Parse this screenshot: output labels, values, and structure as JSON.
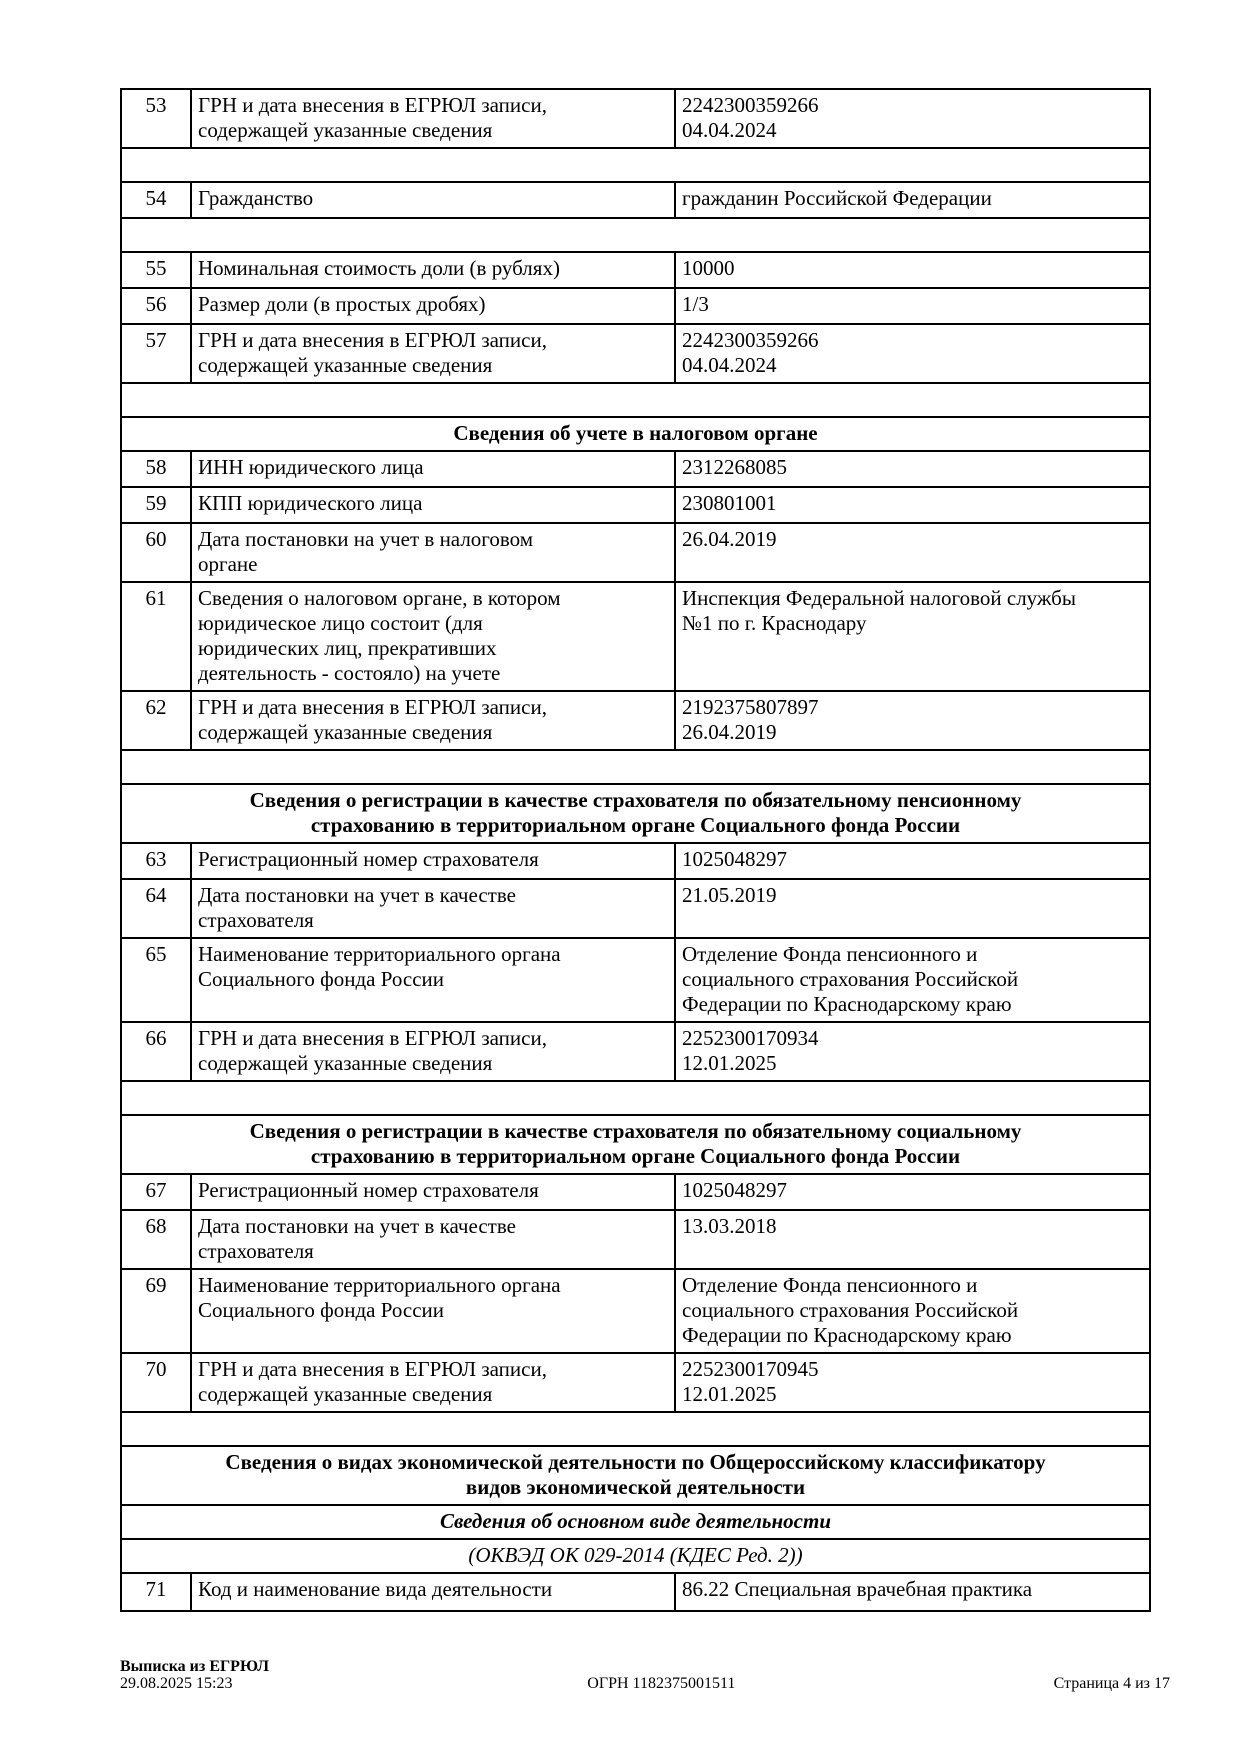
{
  "table": {
    "rows": [
      {
        "type": "data",
        "num": "53",
        "label_lines": [
          "ГРН и дата внесения в ЕГРЮЛ записи,",
          "содержащей указанные сведения"
        ],
        "value_lines": [
          "2242300359266",
          "04.04.2024"
        ]
      },
      {
        "type": "spacer"
      },
      {
        "type": "data",
        "num": "54",
        "label_lines": [
          "Гражданство"
        ],
        "value_lines": [
          "гражданин Российской Федерации"
        ]
      },
      {
        "type": "spacer"
      },
      {
        "type": "data",
        "num": "55",
        "label_lines": [
          "Номинальная стоимость доли (в рублях)"
        ],
        "value_lines": [
          "10000"
        ]
      },
      {
        "type": "data",
        "num": "56",
        "label_lines": [
          "Размер доли (в простых дробях)"
        ],
        "value_lines": [
          "1/3"
        ]
      },
      {
        "type": "data",
        "num": "57",
        "label_lines": [
          "ГРН и дата внесения в ЕГРЮЛ записи,",
          "содержащей указанные сведения"
        ],
        "value_lines": [
          "2242300359266",
          "04.04.2024"
        ]
      },
      {
        "type": "spacer"
      },
      {
        "type": "section",
        "lines": [
          "Сведения об учете в налоговом органе"
        ]
      },
      {
        "type": "data",
        "num": "58",
        "label_lines": [
          "ИНН юридического лица"
        ],
        "value_lines": [
          "2312268085"
        ]
      },
      {
        "type": "data",
        "num": "59",
        "label_lines": [
          "КПП юридического лица"
        ],
        "value_lines": [
          "230801001"
        ]
      },
      {
        "type": "data",
        "num": "60",
        "label_lines": [
          "Дата постановки на учет в налоговом",
          "органе"
        ],
        "value_lines": [
          "26.04.2019"
        ]
      },
      {
        "type": "data",
        "num": "61",
        "label_lines": [
          "Сведения о налоговом органе, в котором",
          "юридическое лицо состоит (для",
          "юридических лиц, прекративших",
          "деятельность - состояло) на учете"
        ],
        "value_lines": [
          "Инспекция Федеральной налоговой службы",
          "№1 по г. Краснодару"
        ]
      },
      {
        "type": "data",
        "num": "62",
        "label_lines": [
          "ГРН и дата внесения в ЕГРЮЛ записи,",
          "содержащей указанные сведения"
        ],
        "value_lines": [
          "2192375807897",
          "26.04.2019"
        ]
      },
      {
        "type": "spacer"
      },
      {
        "type": "section",
        "lines": [
          "Сведения о регистрации в качестве страхователя по обязательному пенсионному",
          "страхованию в территориальном органе Социального фонда России"
        ]
      },
      {
        "type": "data",
        "num": "63",
        "label_lines": [
          "Регистрационный номер страхователя"
        ],
        "value_lines": [
          "1025048297"
        ]
      },
      {
        "type": "data",
        "num": "64",
        "label_lines": [
          "Дата постановки на учет в качестве",
          "страхователя"
        ],
        "value_lines": [
          "21.05.2019"
        ]
      },
      {
        "type": "data",
        "num": "65",
        "label_lines": [
          "Наименование территориального органа",
          "Социального фонда России"
        ],
        "value_lines": [
          "Отделение Фонда пенсионного и",
          "социального страхования Российской",
          "Федерации по Краснодарскому краю"
        ]
      },
      {
        "type": "data",
        "num": "66",
        "label_lines": [
          "ГРН и дата внесения в ЕГРЮЛ записи,",
          "содержащей указанные сведения"
        ],
        "value_lines": [
          "2252300170934",
          "12.01.2025"
        ]
      },
      {
        "type": "spacer"
      },
      {
        "type": "section",
        "lines": [
          "Сведения о регистрации в качестве страхователя по обязательному социальному",
          "страхованию в территориальном органе Социального фонда России"
        ]
      },
      {
        "type": "data",
        "num": "67",
        "label_lines": [
          "Регистрационный номер страхователя"
        ],
        "value_lines": [
          "1025048297"
        ]
      },
      {
        "type": "data",
        "num": "68",
        "label_lines": [
          "Дата постановки на учет в качестве",
          "страхователя"
        ],
        "value_lines": [
          "13.03.2018"
        ]
      },
      {
        "type": "data",
        "num": "69",
        "label_lines": [
          "Наименование территориального органа",
          "Социального фонда России"
        ],
        "value_lines": [
          "Отделение Фонда пенсионного и",
          "социального страхования Российской",
          "Федерации по Краснодарскому краю"
        ]
      },
      {
        "type": "data",
        "num": "70",
        "label_lines": [
          "ГРН и дата внесения в ЕГРЮЛ записи,",
          "содержащей указанные сведения"
        ],
        "value_lines": [
          "2252300170945",
          "12.01.2025"
        ]
      },
      {
        "type": "spacer"
      },
      {
        "type": "section",
        "lines": [
          "Сведения о видах экономической деятельности по Общероссийскому классификатору",
          "видов экономической деятельности"
        ]
      },
      {
        "type": "subsection",
        "lines": [
          "Сведения об основном виде деятельности"
        ]
      },
      {
        "type": "subnote",
        "lines": [
          "(ОКВЭД ОК 029-2014 (КДЕС Ред. 2))"
        ]
      },
      {
        "type": "data",
        "num": "71",
        "label_lines": [
          "Код и наименование вида деятельности"
        ],
        "value_lines": [
          "86.22 Специальная врачебная практика"
        ]
      }
    ]
  },
  "footer": {
    "doc_title": "Выписка из ЕГРЮЛ",
    "datetime": "29.08.2025 15:23",
    "ogrn": "ОГРН 1182375001511",
    "page": "Страница 4 из 17"
  }
}
